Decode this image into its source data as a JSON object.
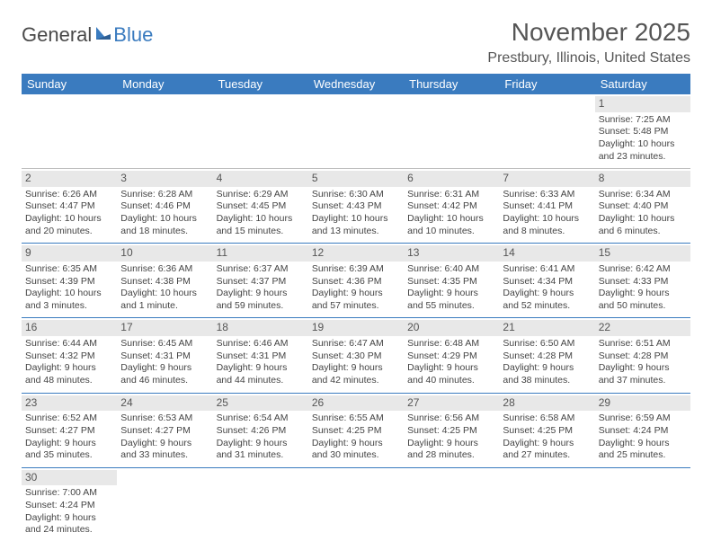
{
  "logo": {
    "general": "General",
    "blue": "Blue"
  },
  "header": {
    "month_title": "November 2025",
    "location": "Prestbury, Illinois, United States"
  },
  "colors": {
    "header_bg": "#3a7bbf",
    "header_text": "#ffffff",
    "body_text": "#444444",
    "daynum_bg": "#e8e8e8"
  },
  "day_names": [
    "Sunday",
    "Monday",
    "Tuesday",
    "Wednesday",
    "Thursday",
    "Friday",
    "Saturday"
  ],
  "weeks": [
    [
      null,
      null,
      null,
      null,
      null,
      null,
      {
        "d": "1",
        "sr": "Sunrise: 7:25 AM",
        "ss": "Sunset: 5:48 PM",
        "dl1": "Daylight: 10 hours",
        "dl2": "and 23 minutes."
      }
    ],
    [
      {
        "d": "2",
        "sr": "Sunrise: 6:26 AM",
        "ss": "Sunset: 4:47 PM",
        "dl1": "Daylight: 10 hours",
        "dl2": "and 20 minutes."
      },
      {
        "d": "3",
        "sr": "Sunrise: 6:28 AM",
        "ss": "Sunset: 4:46 PM",
        "dl1": "Daylight: 10 hours",
        "dl2": "and 18 minutes."
      },
      {
        "d": "4",
        "sr": "Sunrise: 6:29 AM",
        "ss": "Sunset: 4:45 PM",
        "dl1": "Daylight: 10 hours",
        "dl2": "and 15 minutes."
      },
      {
        "d": "5",
        "sr": "Sunrise: 6:30 AM",
        "ss": "Sunset: 4:43 PM",
        "dl1": "Daylight: 10 hours",
        "dl2": "and 13 minutes."
      },
      {
        "d": "6",
        "sr": "Sunrise: 6:31 AM",
        "ss": "Sunset: 4:42 PM",
        "dl1": "Daylight: 10 hours",
        "dl2": "and 10 minutes."
      },
      {
        "d": "7",
        "sr": "Sunrise: 6:33 AM",
        "ss": "Sunset: 4:41 PM",
        "dl1": "Daylight: 10 hours",
        "dl2": "and 8 minutes."
      },
      {
        "d": "8",
        "sr": "Sunrise: 6:34 AM",
        "ss": "Sunset: 4:40 PM",
        "dl1": "Daylight: 10 hours",
        "dl2": "and 6 minutes."
      }
    ],
    [
      {
        "d": "9",
        "sr": "Sunrise: 6:35 AM",
        "ss": "Sunset: 4:39 PM",
        "dl1": "Daylight: 10 hours",
        "dl2": "and 3 minutes."
      },
      {
        "d": "10",
        "sr": "Sunrise: 6:36 AM",
        "ss": "Sunset: 4:38 PM",
        "dl1": "Daylight: 10 hours",
        "dl2": "and 1 minute."
      },
      {
        "d": "11",
        "sr": "Sunrise: 6:37 AM",
        "ss": "Sunset: 4:37 PM",
        "dl1": "Daylight: 9 hours",
        "dl2": "and 59 minutes."
      },
      {
        "d": "12",
        "sr": "Sunrise: 6:39 AM",
        "ss": "Sunset: 4:36 PM",
        "dl1": "Daylight: 9 hours",
        "dl2": "and 57 minutes."
      },
      {
        "d": "13",
        "sr": "Sunrise: 6:40 AM",
        "ss": "Sunset: 4:35 PM",
        "dl1": "Daylight: 9 hours",
        "dl2": "and 55 minutes."
      },
      {
        "d": "14",
        "sr": "Sunrise: 6:41 AM",
        "ss": "Sunset: 4:34 PM",
        "dl1": "Daylight: 9 hours",
        "dl2": "and 52 minutes."
      },
      {
        "d": "15",
        "sr": "Sunrise: 6:42 AM",
        "ss": "Sunset: 4:33 PM",
        "dl1": "Daylight: 9 hours",
        "dl2": "and 50 minutes."
      }
    ],
    [
      {
        "d": "16",
        "sr": "Sunrise: 6:44 AM",
        "ss": "Sunset: 4:32 PM",
        "dl1": "Daylight: 9 hours",
        "dl2": "and 48 minutes."
      },
      {
        "d": "17",
        "sr": "Sunrise: 6:45 AM",
        "ss": "Sunset: 4:31 PM",
        "dl1": "Daylight: 9 hours",
        "dl2": "and 46 minutes."
      },
      {
        "d": "18",
        "sr": "Sunrise: 6:46 AM",
        "ss": "Sunset: 4:31 PM",
        "dl1": "Daylight: 9 hours",
        "dl2": "and 44 minutes."
      },
      {
        "d": "19",
        "sr": "Sunrise: 6:47 AM",
        "ss": "Sunset: 4:30 PM",
        "dl1": "Daylight: 9 hours",
        "dl2": "and 42 minutes."
      },
      {
        "d": "20",
        "sr": "Sunrise: 6:48 AM",
        "ss": "Sunset: 4:29 PM",
        "dl1": "Daylight: 9 hours",
        "dl2": "and 40 minutes."
      },
      {
        "d": "21",
        "sr": "Sunrise: 6:50 AM",
        "ss": "Sunset: 4:28 PM",
        "dl1": "Daylight: 9 hours",
        "dl2": "and 38 minutes."
      },
      {
        "d": "22",
        "sr": "Sunrise: 6:51 AM",
        "ss": "Sunset: 4:28 PM",
        "dl1": "Daylight: 9 hours",
        "dl2": "and 37 minutes."
      }
    ],
    [
      {
        "d": "23",
        "sr": "Sunrise: 6:52 AM",
        "ss": "Sunset: 4:27 PM",
        "dl1": "Daylight: 9 hours",
        "dl2": "and 35 minutes."
      },
      {
        "d": "24",
        "sr": "Sunrise: 6:53 AM",
        "ss": "Sunset: 4:27 PM",
        "dl1": "Daylight: 9 hours",
        "dl2": "and 33 minutes."
      },
      {
        "d": "25",
        "sr": "Sunrise: 6:54 AM",
        "ss": "Sunset: 4:26 PM",
        "dl1": "Daylight: 9 hours",
        "dl2": "and 31 minutes."
      },
      {
        "d": "26",
        "sr": "Sunrise: 6:55 AM",
        "ss": "Sunset: 4:25 PM",
        "dl1": "Daylight: 9 hours",
        "dl2": "and 30 minutes."
      },
      {
        "d": "27",
        "sr": "Sunrise: 6:56 AM",
        "ss": "Sunset: 4:25 PM",
        "dl1": "Daylight: 9 hours",
        "dl2": "and 28 minutes."
      },
      {
        "d": "28",
        "sr": "Sunrise: 6:58 AM",
        "ss": "Sunset: 4:25 PM",
        "dl1": "Daylight: 9 hours",
        "dl2": "and 27 minutes."
      },
      {
        "d": "29",
        "sr": "Sunrise: 6:59 AM",
        "ss": "Sunset: 4:24 PM",
        "dl1": "Daylight: 9 hours",
        "dl2": "and 25 minutes."
      }
    ],
    [
      {
        "d": "30",
        "sr": "Sunrise: 7:00 AM",
        "ss": "Sunset: 4:24 PM",
        "dl1": "Daylight: 9 hours",
        "dl2": "and 24 minutes."
      },
      null,
      null,
      null,
      null,
      null,
      null
    ]
  ]
}
